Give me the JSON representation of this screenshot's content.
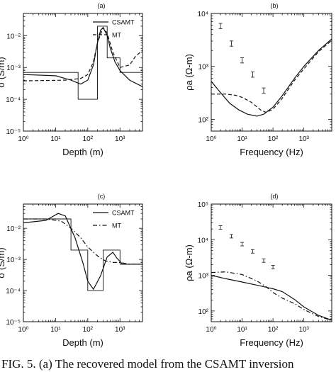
{
  "caption": "FIG. 5. (a) The recovered model from the CSAMT inversion",
  "chart_data": [
    {
      "panel": "(a)",
      "type": "line",
      "xlabel": "Depth (m)",
      "ylabel": "σ (S/m)",
      "xscale": "log",
      "yscale": "log",
      "xlim": [
        1,
        5000
      ],
      "ylim": [
        1e-05,
        0.05
      ],
      "xticks": [
        1,
        10,
        100,
        1000
      ],
      "xtick_labels": [
        "10⁰",
        "10¹",
        "10²",
        "10³"
      ],
      "yticks": [
        1e-05,
        0.0001,
        0.001,
        0.01
      ],
      "ytick_labels": [
        "10⁻⁵",
        "10⁻⁴",
        "10⁻³",
        "10⁻²"
      ],
      "legend": {
        "position": "top-right",
        "entries": [
          {
            "label": "CSAMT",
            "style": "solid"
          },
          {
            "label": "MT",
            "style": "dashed"
          }
        ]
      },
      "series": [
        {
          "name": "true model",
          "style": "step",
          "label_shown": false,
          "points": [
            [
              1,
              0.0007
            ],
            [
              50,
              0.0007
            ],
            [
              50,
              0.0001
            ],
            [
              200,
              0.0001
            ],
            [
              200,
              0.02
            ],
            [
              400,
              0.02
            ],
            [
              400,
              0.002
            ],
            [
              1000,
              0.002
            ],
            [
              1000,
              0.0007
            ],
            [
              5000,
              0.0007
            ]
          ]
        },
        {
          "name": "CSAMT",
          "style": "solid",
          "points": [
            [
              1,
              0.0006
            ],
            [
              10,
              0.00055
            ],
            [
              30,
              0.0004
            ],
            [
              60,
              0.0003
            ],
            [
              100,
              0.0004
            ],
            [
              150,
              0.0012
            ],
            [
              200,
              0.006
            ],
            [
              250,
              0.015
            ],
            [
              300,
              0.018
            ],
            [
              400,
              0.01
            ],
            [
              500,
              0.004
            ],
            [
              700,
              0.0015
            ],
            [
              1000,
              0.0008
            ],
            [
              2000,
              0.0004
            ],
            [
              5000,
              0.00025
            ]
          ]
        },
        {
          "name": "MT",
          "style": "dashed",
          "points": [
            [
              1,
              0.00038
            ],
            [
              20,
              0.0004
            ],
            [
              60,
              0.00045
            ],
            [
              100,
              0.0006
            ],
            [
              150,
              0.0015
            ],
            [
              200,
              0.006
            ],
            [
              300,
              0.018
            ],
            [
              400,
              0.012
            ],
            [
              600,
              0.003
            ],
            [
              1000,
              0.001
            ],
            [
              2000,
              0.0012
            ],
            [
              3000,
              0.0022
            ],
            [
              5000,
              0.0035
            ]
          ]
        }
      ]
    },
    {
      "panel": "(b)",
      "type": "line",
      "xlabel": "Frequency (Hz)",
      "ylabel": "ρa (Ω-m)",
      "xscale": "log",
      "yscale": "log",
      "xlim": [
        1,
        8000
      ],
      "ylim": [
        60,
        10000
      ],
      "xticks": [
        1,
        10,
        100,
        1000
      ],
      "xtick_labels": [
        "10⁰",
        "10¹",
        "10²",
        "10³"
      ],
      "yticks": [
        100,
        1000,
        10000
      ],
      "ytick_labels": [
        "10²",
        "10³",
        "10⁴"
      ],
      "series": [
        {
          "name": "CSAMT",
          "style": "solid",
          "points": [
            [
              1,
              520
            ],
            [
              2,
              320
            ],
            [
              4,
              200
            ],
            [
              8,
              150
            ],
            [
              15,
              125
            ],
            [
              30,
              115
            ],
            [
              50,
              125
            ],
            [
              100,
              170
            ],
            [
              200,
              280
            ],
            [
              500,
              600
            ],
            [
              1000,
              1000
            ],
            [
              3000,
              2000
            ],
            [
              8000,
              3300
            ]
          ]
        },
        {
          "name": "MT",
          "style": "dashed",
          "points": [
            [
              1,
              300
            ],
            [
              3,
              300
            ],
            [
              6,
              285
            ],
            [
              10,
              260
            ],
            [
              20,
              210
            ],
            [
              40,
              150
            ],
            [
              60,
              135
            ],
            [
              100,
              155
            ],
            [
              200,
              250
            ],
            [
              500,
              550
            ],
            [
              1000,
              900
            ],
            [
              3000,
              1900
            ],
            [
              8000,
              3100
            ]
          ]
        },
        {
          "name": "field data",
          "style": "errorbar",
          "points": [
            [
              2,
              5800
            ],
            [
              4.5,
              2700
            ],
            [
              10,
              1300
            ],
            [
              22,
              700
            ],
            [
              50,
              350
            ]
          ]
        }
      ]
    },
    {
      "panel": "(c)",
      "type": "line",
      "xlabel": "Depth (m)",
      "ylabel": "σ (S/m)",
      "xscale": "log",
      "yscale": "log",
      "xlim": [
        1,
        5000
      ],
      "ylim": [
        1e-05,
        0.06
      ],
      "xticks": [
        1,
        10,
        100,
        1000
      ],
      "xtick_labels": [
        "10⁰",
        "10¹",
        "10²",
        "10³"
      ],
      "yticks": [
        1e-05,
        0.0001,
        0.001,
        0.01
      ],
      "ytick_labels": [
        "10⁻⁵",
        "10⁻⁴",
        "10⁻³",
        "10⁻²"
      ],
      "legend": {
        "position": "top-right",
        "entries": [
          {
            "label": "CSAMT",
            "style": "solid"
          },
          {
            "label": "MT",
            "style": "dash-dot"
          }
        ]
      },
      "series": [
        {
          "name": "true model",
          "style": "step",
          "label_shown": false,
          "points": [
            [
              1,
              0.02
            ],
            [
              30,
              0.02
            ],
            [
              30,
              0.002
            ],
            [
              100,
              0.002
            ],
            [
              100,
              0.0001
            ],
            [
              300,
              0.0001
            ],
            [
              300,
              0.002
            ],
            [
              1000,
              0.002
            ],
            [
              1000,
              0.0007
            ],
            [
              5000,
              0.0007
            ]
          ]
        },
        {
          "name": "CSAMT",
          "style": "solid",
          "points": [
            [
              1,
              0.015
            ],
            [
              5,
              0.018
            ],
            [
              12,
              0.03
            ],
            [
              20,
              0.025
            ],
            [
              40,
              0.005
            ],
            [
              70,
              0.0008
            ],
            [
              100,
              0.0002
            ],
            [
              150,
              0.00011
            ],
            [
              250,
              0.0003
            ],
            [
              400,
              0.0012
            ],
            [
              600,
              0.0017
            ],
            [
              800,
              0.0011
            ],
            [
              1200,
              0.0007
            ],
            [
              2500,
              0.0007
            ],
            [
              5000,
              0.0007
            ]
          ]
        },
        {
          "name": "MT",
          "style": "dash-dot",
          "points": [
            [
              1,
              0.02
            ],
            [
              5,
              0.02
            ],
            [
              15,
              0.017
            ],
            [
              30,
              0.01
            ],
            [
              60,
              0.005
            ],
            [
              100,
              0.0025
            ],
            [
              200,
              0.0013
            ],
            [
              350,
              0.0009
            ],
            [
              600,
              0.0008
            ],
            [
              1000,
              0.0008
            ],
            [
              2000,
              0.0007
            ],
            [
              5000,
              0.0007
            ]
          ]
        }
      ]
    },
    {
      "panel": "(d)",
      "type": "line",
      "xlabel": "Frequency (Hz)",
      "ylabel": "ρa (Ω-m)",
      "xscale": "log",
      "yscale": "log",
      "xlim": [
        1,
        8000
      ],
      "ylim": [
        50,
        100000
      ],
      "xticks": [
        1,
        10,
        100,
        1000
      ],
      "xtick_labels": [
        "10⁰",
        "10¹",
        "10²",
        "10³"
      ],
      "yticks": [
        100,
        1000,
        10000,
        100000
      ],
      "ytick_labels": [
        "10²",
        "10³",
        "10⁴",
        "10⁵"
      ],
      "series": [
        {
          "name": "CSAMT",
          "style": "solid",
          "points": [
            [
              1,
              1000
            ],
            [
              3,
              800
            ],
            [
              10,
              650
            ],
            [
              30,
              530
            ],
            [
              100,
              420
            ],
            [
              200,
              350
            ],
            [
              500,
              210
            ],
            [
              1000,
              130
            ],
            [
              3000,
              75
            ],
            [
              8000,
              55
            ]
          ]
        },
        {
          "name": "MT",
          "style": "dash-dot",
          "points": [
            [
              1,
              1200
            ],
            [
              3,
              1250
            ],
            [
              10,
              1050
            ],
            [
              30,
              700
            ],
            [
              60,
              480
            ],
            [
              100,
              330
            ],
            [
              200,
              230
            ],
            [
              500,
              160
            ],
            [
              1000,
              110
            ],
            [
              3000,
              70
            ],
            [
              8000,
              55
            ]
          ]
        },
        {
          "name": "field data",
          "style": "errorbar",
          "points": [
            [
              2,
              22000
            ],
            [
              4.5,
              12500
            ],
            [
              10,
              7500
            ],
            [
              22,
              4700
            ],
            [
              50,
              2600
            ],
            [
              100,
              1700
            ]
          ]
        }
      ]
    }
  ]
}
